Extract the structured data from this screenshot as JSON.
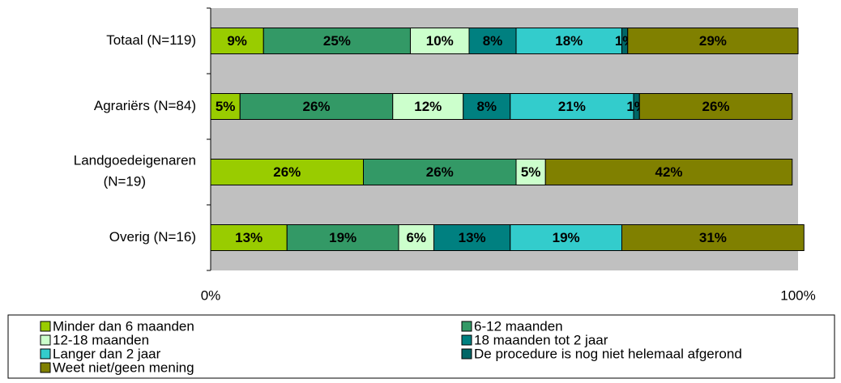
{
  "chart_data": {
    "type": "stacked-bar-horizontal",
    "categories": [
      "Totaal (N=119)",
      "Agrariërs (N=84)",
      "Landgoedeigenaren (N=19)",
      "Overig (N=16)"
    ],
    "series": [
      {
        "name": "Minder dan 6 maanden",
        "color": "#99cc00",
        "values": [
          9,
          5,
          26,
          13
        ],
        "value_labels": [
          "9%",
          "5%",
          "26%",
          "13%"
        ]
      },
      {
        "name": "6-12 maanden",
        "color": "#339966",
        "values": [
          25,
          26,
          26,
          19
        ],
        "value_labels": [
          "25%",
          "26%",
          "26%",
          "19%"
        ]
      },
      {
        "name": "12-18 maanden",
        "color": "#ccffcc",
        "values": [
          10,
          12,
          5,
          6
        ],
        "value_labels": [
          "10%",
          "12%",
          "5%",
          "6%"
        ]
      },
      {
        "name": "18 maanden tot 2 jaar",
        "color": "#008080",
        "values": [
          8,
          8,
          null,
          13
        ],
        "value_labels": [
          "8%",
          "8%",
          null,
          "13%"
        ]
      },
      {
        "name": "Langer dan 2 jaar",
        "color": "#33cccc",
        "values": [
          18,
          21,
          null,
          19
        ],
        "value_labels": [
          "18%",
          "21%",
          null,
          "19%"
        ]
      },
      {
        "name": "De procedure is nog niet helemaal afgerond",
        "color": "#006666",
        "values": [
          1,
          1,
          null,
          null
        ],
        "value_labels": [
          "1%",
          "1%",
          null,
          null
        ]
      },
      {
        "name": "Weet niet/geen mening",
        "color": "#808000",
        "values": [
          29,
          26,
          42,
          31
        ],
        "value_labels": [
          "29%",
          "26%",
          "42%",
          "31%"
        ]
      }
    ],
    "xlim": [
      0,
      100
    ],
    "xticks": [
      {
        "value": 0,
        "label": "0%"
      },
      {
        "value": 100,
        "label": "100%"
      }
    ]
  }
}
